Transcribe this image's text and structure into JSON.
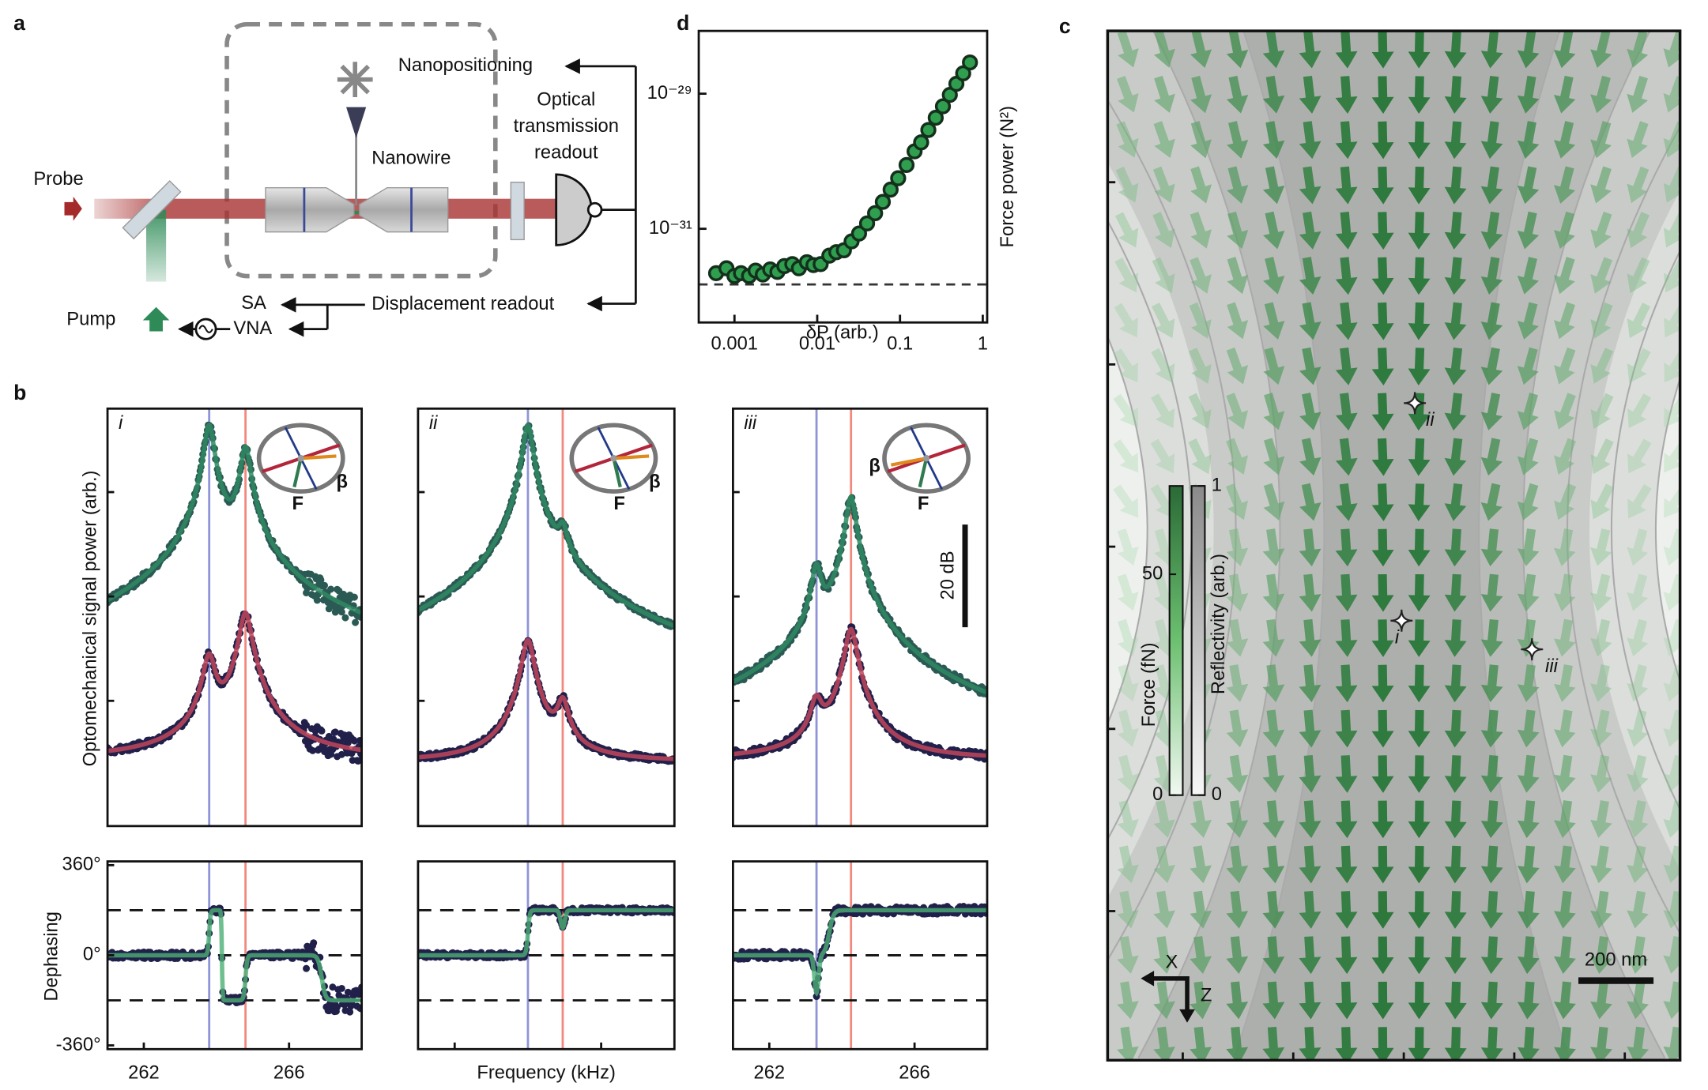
{
  "panels": {
    "a": {
      "label": "a",
      "probe": "Probe",
      "pump": "Pump",
      "nanopositioning": "Nanopositioning",
      "nanowire": "Nanowire",
      "optical_readout": [
        "Optical",
        "transmission",
        "readout"
      ],
      "displacement_readout": "Displacement readout",
      "sa": "SA",
      "vna": "VNA"
    },
    "b": {
      "label": "b",
      "y_label": "Optomechanical signal power (arb.)",
      "phase_label": "Dephasing",
      "x_label": "Frequency (kHz)",
      "scale_bar": "20 dB",
      "xlim": [
        261.0,
        268.0
      ],
      "xticks": [
        262,
        266
      ],
      "phase_lim": [
        -375,
        375
      ],
      "phase_ticks": [
        {
          "value": 360,
          "label": "360°"
        },
        {
          "value": 0,
          "label": "0°"
        },
        {
          "value": -360,
          "label": "-360°"
        }
      ],
      "phase_guides": [
        -180,
        0,
        180
      ],
      "subpanels": [
        {
          "label": "i",
          "modes": [
            263.8,
            264.8
          ],
          "force": "F",
          "beta": "β"
        },
        {
          "label": "ii",
          "modes": [
            264.0,
            264.95
          ],
          "force": "F",
          "beta": "β"
        },
        {
          "label": "iii",
          "modes": [
            263.3,
            264.25
          ],
          "force": "F",
          "beta": "β"
        }
      ]
    },
    "c": {
      "label": "c",
      "force_label": "Force (fN)",
      "force_lim": [
        0,
        70
      ],
      "force_ticks": [
        0,
        50
      ],
      "reflectivity_label": "Reflectivity (arb.)",
      "reflectivity_lim": [
        0,
        1
      ],
      "reflectivity_ticks": [
        0,
        1
      ],
      "scale_bar": "200 nm",
      "axis_x": "X",
      "axis_z": "Z",
      "points": [
        "i",
        "ii",
        "iii"
      ]
    }
  },
  "chart_data": {
    "type": "scatter",
    "panel_label": "d",
    "x_label": "δP (arb.)",
    "y_label": "Force power (N²)",
    "x": [
      0.0006,
      0.0008,
      0.001,
      0.0012,
      0.0015,
      0.0018,
      0.0022,
      0.0027,
      0.0033,
      0.004,
      0.005,
      0.006,
      0.0075,
      0.009,
      0.011,
      0.014,
      0.017,
      0.021,
      0.026,
      0.032,
      0.04,
      0.05,
      0.062,
      0.077,
      0.095,
      0.12,
      0.15,
      0.18,
      0.22,
      0.27,
      0.33,
      0.4,
      0.48,
      0.58,
      0.7
    ],
    "values": [
      2.2e-32,
      2.6e-32,
      2e-32,
      2.2e-32,
      2e-32,
      2.4e-32,
      2.1e-32,
      2.5e-32,
      2.3e-32,
      2.8e-32,
      3e-32,
      2.6e-32,
      3.2e-32,
      2.9e-32,
      3e-32,
      4e-32,
      4.5e-32,
      4.8e-32,
      6.5e-32,
      8.5e-32,
      1.2e-31,
      1.7e-31,
      2.5e-31,
      3.8e-31,
      5.6e-31,
      8.8e-31,
      1.4e-30,
      1.9e-30,
      2.9e-30,
      4.4e-30,
      6.5e-30,
      9.6e-30,
      1.4e-29,
      2e-29,
      2.9e-29
    ],
    "color": "#2f9e4f",
    "xscale": "log",
    "yscale": "log",
    "xlim": [
      0.00037,
      1.13
    ],
    "ylim": [
      4.1e-33,
      8.5e-29
    ],
    "xticks": [
      0.001,
      0.01,
      0.1,
      1
    ],
    "yticks": [
      {
        "value": 1e-31,
        "label": "10⁻³¹"
      },
      {
        "value": 1e-29,
        "label": "10⁻²⁹"
      }
    ],
    "noise_floor": 1.5e-32
  }
}
